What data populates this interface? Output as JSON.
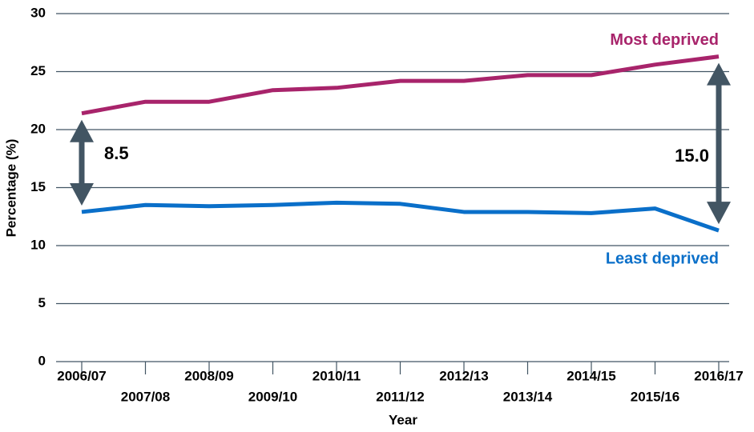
{
  "chart_data": {
    "type": "line",
    "xlabel": "Year",
    "ylabel": "Percentage (%)",
    "categories": [
      "2006/07",
      "2007/08",
      "2008/09",
      "2009/10",
      "2010/11",
      "2011/12",
      "2012/13",
      "2013/14",
      "2014/15",
      "2015/16",
      "2016/17"
    ],
    "series": [
      {
        "name": "Most deprived",
        "color": "#a8246b",
        "values": [
          21.4,
          22.4,
          22.4,
          23.4,
          23.6,
          24.2,
          24.2,
          24.7,
          24.7,
          25.6,
          26.3
        ]
      },
      {
        "name": "Least deprived",
        "color": "#0a6fc9",
        "values": [
          12.9,
          13.5,
          13.4,
          13.5,
          13.7,
          13.6,
          12.9,
          12.9,
          12.8,
          13.2,
          11.3
        ]
      }
    ],
    "annotations": [
      "8.5",
      "15.0"
    ],
    "ylim": [
      0,
      30
    ],
    "yticks": [
      0,
      5,
      10,
      15,
      20,
      25,
      30
    ],
    "grid": true
  }
}
